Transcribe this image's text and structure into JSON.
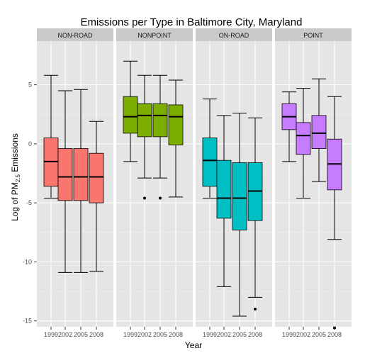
{
  "chart_data": {
    "type": "boxplot",
    "title": "Emissions per Type in Baltimore City, Maryland",
    "xlabel": "Year",
    "ylabel_prefix": "Log of PM",
    "ylabel_sub": "2.5",
    "ylabel_suffix": " Emissions",
    "ylim": [
      -15.5,
      8.7
    ],
    "yticks": [
      -15,
      -10,
      -5,
      0,
      5
    ],
    "ytick_labels": [
      "-15",
      "-10",
      "-5",
      "0",
      "5"
    ],
    "categories": [
      "1999",
      "2002",
      "2005",
      "2008"
    ],
    "grid": true,
    "colors": {
      "1999": "#F8766D",
      "2002": "#F8766D",
      "2005": "#F8766D",
      "2008": "#F8766D"
    },
    "panels": [
      {
        "name": "NON-ROAD",
        "color": "#F8766D",
        "boxes": [
          {
            "year": "1999",
            "min": -4.6,
            "q1": -3.6,
            "median": -1.5,
            "q3": 0.5,
            "max": 5.8,
            "outliers": []
          },
          {
            "year": "2002",
            "min": -10.9,
            "q1": -4.8,
            "median": -2.8,
            "q3": -0.4,
            "max": 4.5,
            "outliers": []
          },
          {
            "year": "2005",
            "min": -10.9,
            "q1": -4.8,
            "median": -2.8,
            "q3": -0.4,
            "max": 4.6,
            "outliers": []
          },
          {
            "year": "2008",
            "min": -10.8,
            "q1": -5.0,
            "median": -2.8,
            "q3": -0.8,
            "max": 1.9,
            "outliers": []
          }
        ]
      },
      {
        "name": "NONPOINT",
        "color": "#7CAE00",
        "boxes": [
          {
            "year": "1999",
            "min": -1.5,
            "q1": 0.9,
            "median": 2.3,
            "q3": 4.0,
            "max": 7.0,
            "outliers": []
          },
          {
            "year": "2002",
            "min": -2.9,
            "q1": 0.6,
            "median": 2.4,
            "q3": 3.4,
            "max": 5.8,
            "outliers": [
              -4.6
            ]
          },
          {
            "year": "2005",
            "min": -2.9,
            "q1": 0.6,
            "median": 2.4,
            "q3": 3.4,
            "max": 5.8,
            "outliers": [
              -4.6
            ]
          },
          {
            "year": "2008",
            "min": -4.5,
            "q1": -0.1,
            "median": 2.3,
            "q3": 3.3,
            "max": 5.4,
            "outliers": []
          }
        ]
      },
      {
        "name": "ON-ROAD",
        "color": "#00BFC4",
        "boxes": [
          {
            "year": "1999",
            "min": -4.6,
            "q1": -3.6,
            "median": -1.4,
            "q3": 0.5,
            "max": 3.8,
            "outliers": []
          },
          {
            "year": "2002",
            "min": -12.1,
            "q1": -6.3,
            "median": -4.6,
            "q3": -1.4,
            "max": 2.4,
            "outliers": []
          },
          {
            "year": "2005",
            "min": -14.6,
            "q1": -7.3,
            "median": -4.6,
            "q3": -1.6,
            "max": 2.6,
            "outliers": []
          },
          {
            "year": "2008",
            "min": -13.0,
            "q1": -6.5,
            "median": -4.0,
            "q3": -1.6,
            "max": 2.2,
            "outliers": [
              -14.0
            ]
          }
        ]
      },
      {
        "name": "POINT",
        "color": "#C77CFF",
        "boxes": [
          {
            "year": "1999",
            "min": -1.5,
            "q1": 1.2,
            "median": 2.3,
            "q3": 3.4,
            "max": 4.4,
            "outliers": []
          },
          {
            "year": "2002",
            "min": -4.6,
            "q1": -0.9,
            "median": 0.7,
            "q3": 1.8,
            "max": 4.7,
            "outliers": []
          },
          {
            "year": "2005",
            "min": -3.2,
            "q1": -0.4,
            "median": 0.9,
            "q3": 2.4,
            "max": 5.5,
            "outliers": []
          },
          {
            "year": "2008",
            "min": -8.1,
            "q1": -3.9,
            "median": -1.7,
            "q3": 0.4,
            "max": 4.0,
            "outliers": [
              -15.6
            ]
          }
        ]
      }
    ]
  }
}
